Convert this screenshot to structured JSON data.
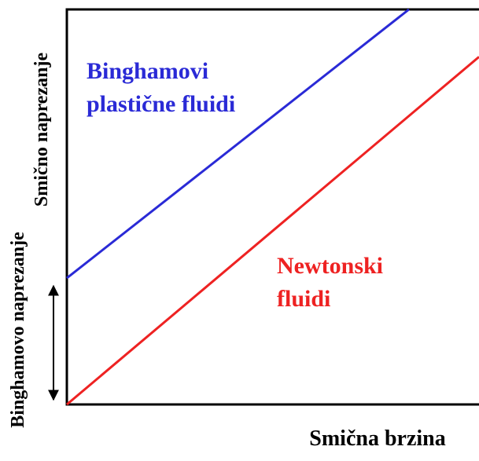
{
  "chart_data": {
    "type": "line",
    "x_label": "Smična brzina",
    "y_label": "Smično naprezanje",
    "yield_label": "Binghamovo naprezanje",
    "xlim": [
      0,
      100
    ],
    "ylim": [
      0,
      100
    ],
    "series": [
      {
        "label": [
          "Binghamovi",
          "plastične fluidi"
        ],
        "color": "#2a2ad6",
        "x": [
          0,
          83
        ],
        "values": [
          32,
          100
        ]
      },
      {
        "label": [
          "Newtonski",
          "fluidi"
        ],
        "color": "#ee2222",
        "x": [
          0,
          100
        ],
        "values": [
          0,
          88
        ]
      }
    ]
  }
}
